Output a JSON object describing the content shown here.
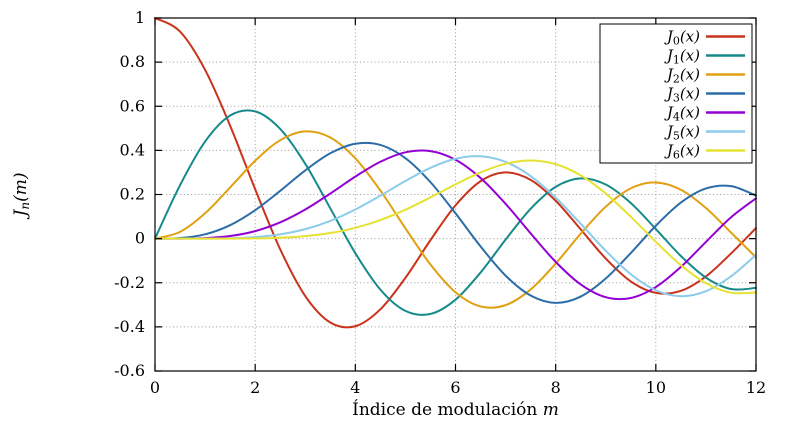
{
  "figure": {
    "background": "#ffffff",
    "axis_color": "#000000",
    "grid_color": "#9a9a9a"
  },
  "chart_data": {
    "type": "line",
    "title": "",
    "xlabel": {
      "text": "Índice de modulación ",
      "math": "m"
    },
    "ylabel": {
      "base": "J",
      "sub": "n",
      "tail": "(m)"
    },
    "xlim": [
      0,
      12
    ],
    "ylim": [
      -0.6,
      1
    ],
    "grid": "dotted",
    "legend_position": "top-right",
    "xtick_values": [
      0,
      2,
      4,
      6,
      8,
      10,
      12
    ],
    "xtick_labels": [
      "0",
      "2",
      "4",
      "6",
      "8",
      "10",
      "12"
    ],
    "ytick_values": [
      -0.6,
      -0.4,
      -0.2,
      0,
      0.2,
      0.4,
      0.6,
      0.8,
      1
    ],
    "ytick_labels": [
      "-0.6",
      "-0.4",
      "-0.2",
      "0",
      "0.2",
      "0.4",
      "0.6",
      "0.8",
      "1"
    ],
    "x": [
      0,
      0.5,
      1,
      1.5,
      2,
      2.5,
      3,
      3.5,
      4,
      4.5,
      5,
      5.5,
      6,
      6.5,
      7,
      7.5,
      8,
      8.5,
      9,
      9.5,
      10,
      10.5,
      11,
      11.5,
      12
    ],
    "series": [
      {
        "label_base": "J",
        "label_sub": "0",
        "label_tail": "(x)",
        "color": "#c9331b",
        "values": [
          1.0,
          0.9385,
          0.7652,
          0.5118,
          0.2239,
          -0.0484,
          -0.2601,
          -0.3801,
          -0.3971,
          -0.3205,
          -0.1776,
          -0.0068,
          0.1506,
          0.2601,
          0.3001,
          0.2663,
          0.1717,
          0.0419,
          -0.0903,
          -0.1939,
          -0.2459,
          -0.2366,
          -0.1712,
          -0.0677,
          0.0477
        ]
      },
      {
        "label_base": "J",
        "label_sub": "1",
        "label_tail": "(x)",
        "color": "#168a8a",
        "values": [
          0,
          0.2423,
          0.4401,
          0.5579,
          0.5767,
          0.4971,
          0.3391,
          0.1374,
          -0.066,
          -0.2311,
          -0.3276,
          -0.3414,
          -0.2767,
          -0.1538,
          -0.0047,
          0.1352,
          0.2346,
          0.2731,
          0.2453,
          0.1613,
          0.0435,
          -0.0789,
          -0.1768,
          -0.2284,
          -0.2234
        ]
      },
      {
        "label_base": "J",
        "label_sub": "2",
        "label_tail": "(x)",
        "color": "#e0a010",
        "values": [
          0,
          0.0306,
          0.1149,
          0.2321,
          0.3528,
          0.4461,
          0.4861,
          0.4586,
          0.3641,
          0.2178,
          0.0466,
          -0.1173,
          -0.2429,
          -0.3074,
          -0.3014,
          -0.2303,
          -0.113,
          0.0223,
          0.1448,
          0.2279,
          0.2546,
          0.2216,
          0.139,
          0.0279,
          -0.0849
        ]
      },
      {
        "label_base": "J",
        "label_sub": "3",
        "label_tail": "(x)",
        "color": "#2c6da8",
        "values": [
          0,
          0.0026,
          0.0196,
          0.061,
          0.1289,
          0.2166,
          0.3091,
          0.3868,
          0.4302,
          0.4247,
          0.3648,
          0.2561,
          0.1148,
          -0.0353,
          -0.1676,
          -0.2579,
          -0.2911,
          -0.2626,
          -0.1809,
          -0.0653,
          0.0584,
          0.1633,
          0.2273,
          0.2381,
          0.1951
        ]
      },
      {
        "label_base": "J",
        "label_sub": "4",
        "label_tail": "(x)",
        "color": "#9400d3",
        "values": [
          0,
          0.0002,
          0.0025,
          0.0118,
          0.034,
          0.0738,
          0.132,
          0.2044,
          0.2811,
          0.3484,
          0.3912,
          0.3967,
          0.3576,
          0.2748,
          0.1578,
          0.0238,
          -0.1054,
          -0.2077,
          -0.2655,
          -0.2691,
          -0.2196,
          -0.1283,
          -0.015,
          0.0962,
          0.1825
        ]
      },
      {
        "label_base": "J",
        "label_sub": "5",
        "label_tail": "(x)",
        "color": "#8cccea",
        "values": [
          0,
          0.0,
          0.0002,
          0.0018,
          0.007,
          0.0195,
          0.043,
          0.0804,
          0.1321,
          0.1947,
          0.2611,
          0.3209,
          0.3621,
          0.3736,
          0.3479,
          0.2835,
          0.1858,
          0.0671,
          -0.055,
          -0.1613,
          -0.2341,
          -0.2611,
          -0.2383,
          -0.1711,
          -0.0735
        ]
      },
      {
        "label_base": "J",
        "label_sub": "6",
        "label_tail": "(x)",
        "color": "#e6e233",
        "values": [
          0,
          0.0,
          0.0,
          0.0002,
          0.0012,
          0.0042,
          0.0114,
          0.0253,
          0.0491,
          0.0843,
          0.131,
          0.1868,
          0.2458,
          0.3,
          0.3392,
          0.3542,
          0.3376,
          0.2867,
          0.2043,
          0.0993,
          -0.0145,
          -0.1204,
          -0.2016,
          -0.245,
          -0.2437
        ]
      }
    ]
  }
}
